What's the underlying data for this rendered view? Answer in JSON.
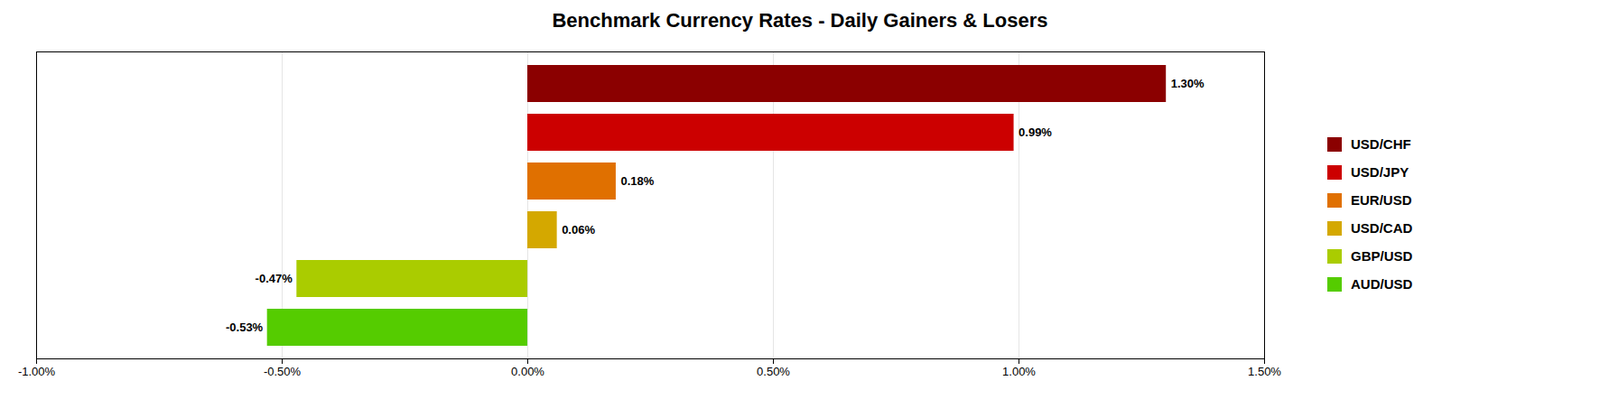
{
  "chart_data": {
    "type": "bar",
    "orientation": "horizontal",
    "title": "Benchmark Currency Rates - Daily Gainers & Losers",
    "categories": [
      "USD/CHF",
      "USD/JPY",
      "EUR/USD",
      "USD/CAD",
      "GBP/USD",
      "AUD/USD"
    ],
    "values": [
      1.3,
      0.99,
      0.18,
      0.06,
      -0.47,
      -0.53
    ],
    "value_labels": [
      "1.30%",
      "0.99%",
      "0.18%",
      "0.06%",
      "-0.47%",
      "-0.53%"
    ],
    "data_labels": true,
    "colors": [
      "#8B0000",
      "#CC0000",
      "#E07000",
      "#D4A800",
      "#AACC00",
      "#55CC00"
    ],
    "xlim": [
      -1.0,
      1.5
    ],
    "xticks": [
      {
        "value": -1.0,
        "label": "-1.00%"
      },
      {
        "value": -0.5,
        "label": "-0.50%"
      },
      {
        "value": 0.0,
        "label": "0.00%"
      },
      {
        "value": 0.5,
        "label": "0.50%"
      },
      {
        "value": 1.0,
        "label": "1.00%"
      },
      {
        "value": 1.5,
        "label": "1.50%"
      }
    ],
    "grid": true,
    "legend": "right",
    "tick_labels": "x"
  }
}
